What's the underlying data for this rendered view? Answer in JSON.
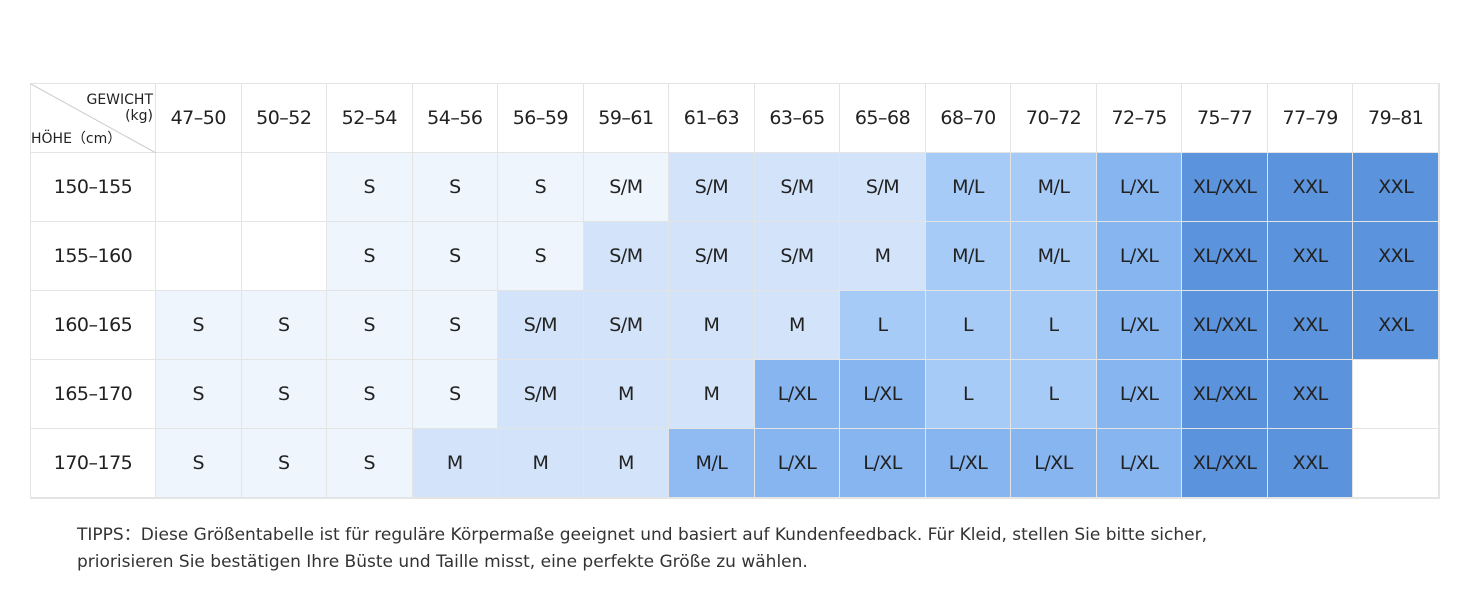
{
  "corner": {
    "weight": "GEWICHT",
    "weight_unit": "(kg)",
    "height": "HÖHE（cm）"
  },
  "columns": [
    "47–50",
    "50–52",
    "52–54",
    "54–56",
    "56–59",
    "59–61",
    "61–63",
    "63–65",
    "65–68",
    "68–70",
    "70–72",
    "72–75",
    "75–77",
    "77–79",
    "79–81"
  ],
  "rows": [
    {
      "label": "150–155",
      "cells": [
        null,
        null,
        "S",
        "S",
        "S",
        "S/M",
        "S/M",
        "S/M",
        "S/M",
        "M/L",
        "M/L",
        "L/XL",
        "XL/XXL",
        "XXL",
        "XXL"
      ],
      "colors": [
        null,
        null,
        "#eef5fd",
        "#eef5fd",
        "#eef5fd",
        "#eef5fd",
        "#d3e4fa",
        "#d3e4fa",
        "#d3e4fa",
        "#a7cbf7",
        "#a7cbf7",
        "#86b5f0",
        "#5b93dd",
        "#5b93dd",
        "#5b93dd"
      ]
    },
    {
      "label": "155–160",
      "cells": [
        null,
        null,
        "S",
        "S",
        "S",
        "S/M",
        "S/M",
        "S/M",
        "M",
        "M/L",
        "M/L",
        "L/XL",
        "XL/XXL",
        "XXL",
        "XXL"
      ],
      "colors": [
        null,
        null,
        "#eef5fd",
        "#eef5fd",
        "#eef5fd",
        "#d3e4fa",
        "#d3e4fa",
        "#d3e4fa",
        "#d3e4fa",
        "#a7cbf7",
        "#a7cbf7",
        "#86b5f0",
        "#5b93dd",
        "#5b93dd",
        "#5b93dd"
      ]
    },
    {
      "label": "160–165",
      "cells": [
        "S",
        "S",
        "S",
        "S",
        "S/M",
        "S/M",
        "M",
        "M",
        "L",
        "L",
        "L",
        "L/XL",
        "XL/XXL",
        "XXL",
        "XXL"
      ],
      "colors": [
        "#eef5fd",
        "#eef5fd",
        "#eef5fd",
        "#eef5fd",
        "#d3e4fa",
        "#d3e4fa",
        "#d3e4fa",
        "#d3e4fa",
        "#a7cbf7",
        "#a7cbf7",
        "#a7cbf7",
        "#86b5f0",
        "#5b93dd",
        "#5b93dd",
        "#5b93dd"
      ]
    },
    {
      "label": "165–170",
      "cells": [
        "S",
        "S",
        "S",
        "S",
        "S/M",
        "M",
        "M",
        "L/XL",
        "L/XL",
        "L",
        "L",
        "L/XL",
        "XL/XXL",
        "XXL",
        null
      ],
      "colors": [
        "#eef5fd",
        "#eef5fd",
        "#eef5fd",
        "#eef5fd",
        "#d3e4fa",
        "#d3e4fa",
        "#d3e4fa",
        "#86b5f0",
        "#86b5f0",
        "#a7cbf7",
        "#a7cbf7",
        "#86b5f0",
        "#5b93dd",
        "#5b93dd",
        null
      ]
    },
    {
      "label": "170–175",
      "cells": [
        "S",
        "S",
        "S",
        "M",
        "M",
        "M",
        "M/L",
        "L/XL",
        "L/XL",
        "L/XL",
        "L/XL",
        "L/XL",
        "XL/XXL",
        "XXL",
        null
      ],
      "colors": [
        "#eef5fd",
        "#eef5fd",
        "#eef5fd",
        "#d3e4fa",
        "#d3e4fa",
        "#d3e4fa",
        "#8fbbf2",
        "#86b5f0",
        "#86b5f0",
        "#86b5f0",
        "#86b5f0",
        "#86b5f0",
        "#5b93dd",
        "#5b93dd",
        null
      ]
    }
  ],
  "footnote": [
    "TIPPS：Diese Größentabelle ist für reguläre Körpermaße geeignet und basiert auf Kundenfeedback. Für Kleid, stellen Sie bitte sicher,",
    "priorisieren Sie bestätigen Ihre Büste und Taille misst, eine perfekte Größe zu wählen."
  ]
}
